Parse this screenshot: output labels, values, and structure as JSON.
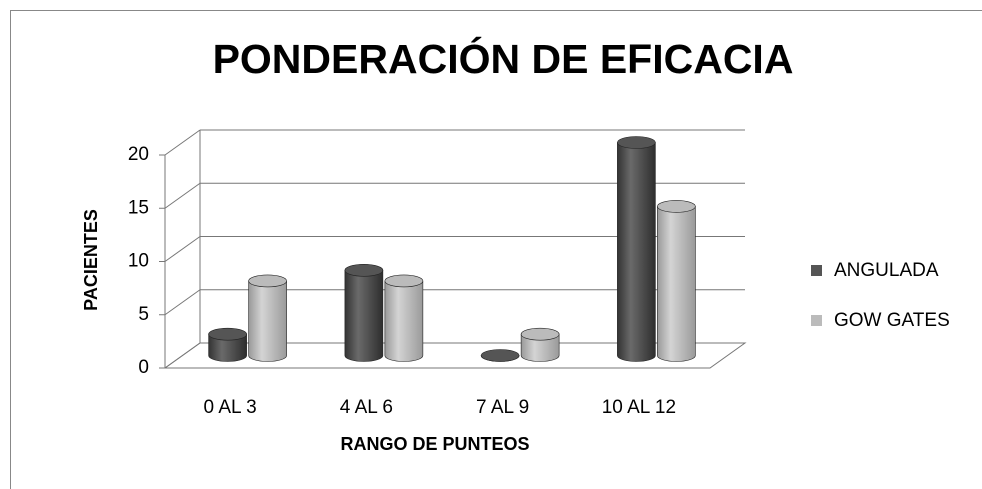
{
  "chart_data": {
    "type": "bar",
    "title": "PONDERACIÓN DE EFICACIA",
    "x_label": "RANGO DE PUNTEOS",
    "y_label": "PACIENTES",
    "categories": [
      "0 AL 3",
      "4 AL 6",
      "7 AL 9",
      "10 AL 12"
    ],
    "series": [
      {
        "name": "ANGULADA",
        "color": "#555555",
        "values": [
          2,
          8,
          0,
          20
        ]
      },
      {
        "name": "GOW GATES",
        "color": "#bbbbbb",
        "values": [
          7,
          7,
          2,
          14
        ]
      }
    ],
    "ylim": [
      0,
      20
    ],
    "yticks": [
      0,
      5,
      10,
      15,
      20
    ],
    "grid": true,
    "legend": "right"
  }
}
